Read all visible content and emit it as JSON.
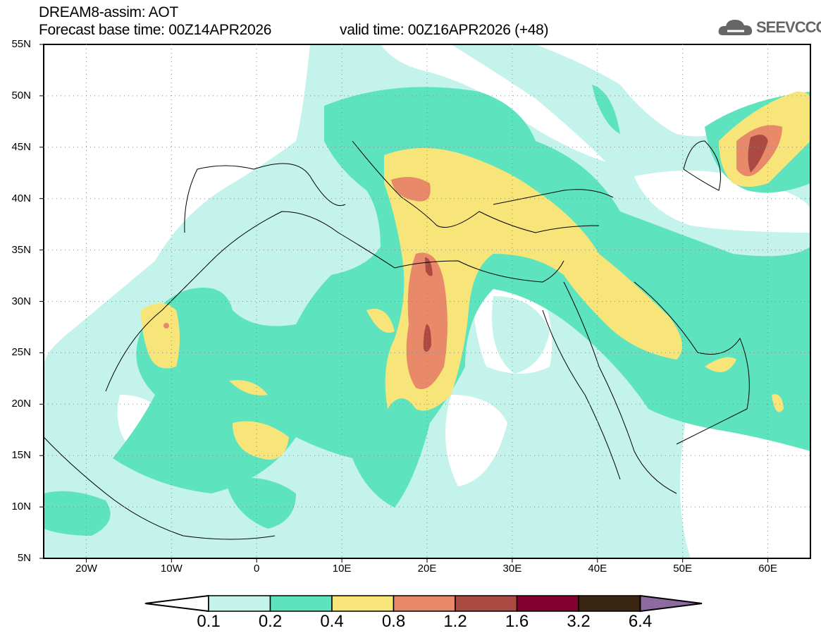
{
  "header": {
    "title": "DREAM8-assim: AOT",
    "base_time": "Forecast base time: 00Z14APR2026",
    "valid_time": "valid time: 00Z16APR2026 (+48)"
  },
  "logo": {
    "text": "SEEVCCC",
    "icon": "cloud-icon"
  },
  "map": {
    "lat_labels": [
      "55N",
      "50N",
      "45N",
      "40N",
      "35N",
      "30N",
      "25N",
      "20N",
      "15N",
      "10N",
      "5N"
    ],
    "lon_labels": [
      "20W",
      "10W",
      "0",
      "10E",
      "20E",
      "30E",
      "40E",
      "50E",
      "60E"
    ],
    "lon_range": [
      -25,
      65
    ],
    "lat_range": [
      5,
      55
    ]
  },
  "colorbar": {
    "labels": [
      "0.1",
      "0.2",
      "0.4",
      "0.8",
      "1.2",
      "1.6",
      "3.2",
      "6.4"
    ],
    "colors": [
      "#ffffff",
      "#c4f3ec",
      "#5ee3bf",
      "#f7e57a",
      "#e8896a",
      "#ab4a43",
      "#820030",
      "#3a2412",
      "#8d6aa0"
    ]
  }
}
